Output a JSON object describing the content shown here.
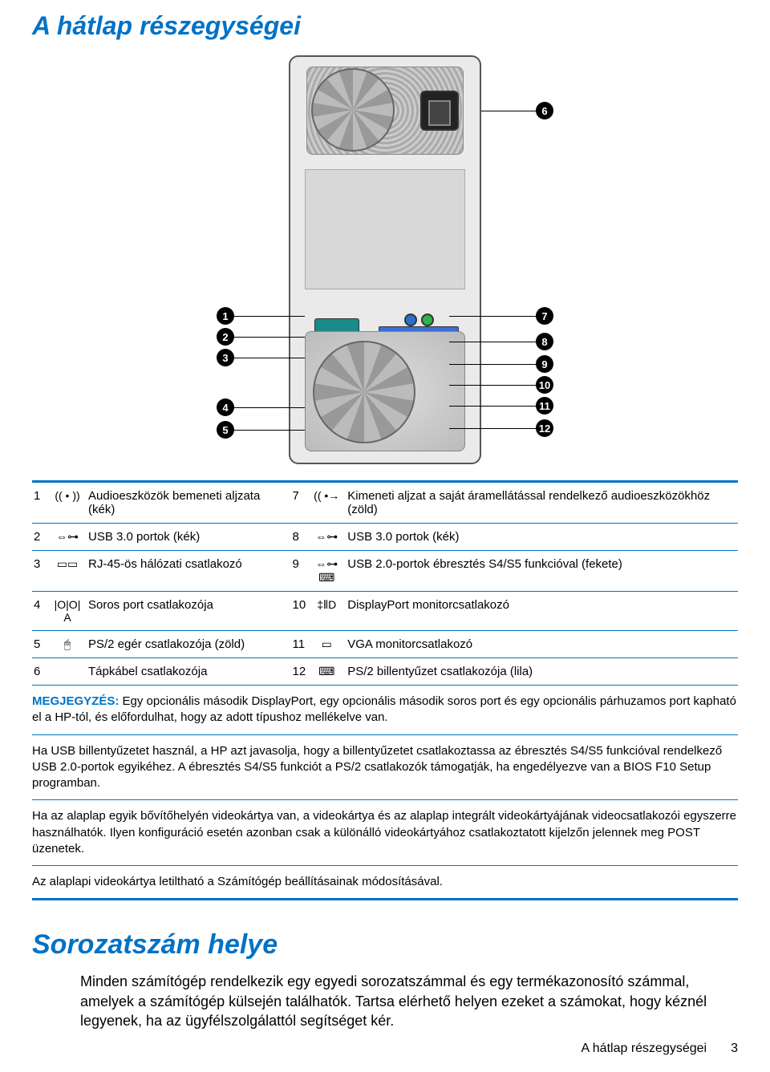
{
  "colors": {
    "accent": "#0072c6"
  },
  "heading1": "A hátlap részegységei",
  "heading2": "Sorozatszám helye",
  "table": {
    "rows": [
      {
        "n1": "1",
        "icon1": "audio-in-icon",
        "t1": "Audioeszközök bemeneti aljzata (kék)",
        "n2": "7",
        "icon2": "audio-out-icon",
        "t2": "Kimeneti aljzat a saját áramellátással rendelkező audioeszközökhöz (zöld)"
      },
      {
        "n1": "2",
        "icon1": "usb-icon",
        "t1": "USB 3.0 portok (kék)",
        "n2": "8",
        "icon2": "usb-icon",
        "t2": "USB 3.0 portok (kék)"
      },
      {
        "n1": "3",
        "icon1": "network-icon",
        "t1": "RJ-45-ös hálózati csatlakozó",
        "n2": "9",
        "icon2": "usb-kb-icon",
        "t2": "USB 2.0-portok ébresztés S4/S5 funkcióval (fekete)"
      },
      {
        "n1": "4",
        "icon1": "serial-icon",
        "t1": "Soros port csatlakozója",
        "n2": "10",
        "icon2": "displayport-icon",
        "t2": "DisplayPort monitorcsatlakozó"
      },
      {
        "n1": "5",
        "icon1": "mouse-icon",
        "t1": "PS/2 egér csatlakozója (zöld)",
        "n2": "11",
        "icon2": "vga-icon",
        "t2": "VGA monitorcsatlakozó"
      },
      {
        "n1": "6",
        "icon1": "",
        "t1": "Tápkábel csatlakozója",
        "n2": "12",
        "icon2": "keyboard-icon",
        "t2": "PS/2 billentyűzet csatlakozója (lila)"
      }
    ]
  },
  "notes": {
    "label": "MEGJEGYZÉS:",
    "p1": "Egy opcionális második DisplayPort, egy opcionális második soros port és egy opcionális párhuzamos port kapható el a HP-tól, és előfordulhat, hogy az adott típushoz mellékelve van.",
    "p2": "Ha USB billentyűzetet használ, a HP azt javasolja, hogy a billentyűzetet csatlakoztassa az ébresztés S4/S5 funkcióval rendelkező USB 2.0-portok egyikéhez. A ébresztés S4/S5 funkciót a PS/2 csatlakozók támogatják, ha engedélyezve van a BIOS F10 Setup programban.",
    "p3": "Ha az alaplap egyik bővítőhelyén videokártya van, a videokártya és az alaplap integrált videokártyájának videocsatlakozói egyszerre használhatók. Ilyen konfiguráció esetén azonban csak a különálló videokártyához csatlakoztatott kijelzőn jelennek meg POST üzenetek.",
    "p4": "Az alaplapi videokártya letiltható a Számítógép beállításainak módosításával."
  },
  "serial_para": "Minden számítógép rendelkezik egy egyedi sorozatszámmal és egy termékazonosító számmal, amelyek a számítógép külsején találhatók. Tartsa elérhető helyen ezeket a számokat, hogy kéznél legyenek, ha az ügyfélszolgálattól segítséget kér.",
  "footer": {
    "section": "A hátlap részegységei",
    "page": "3"
  },
  "callouts_left": [
    "1",
    "2",
    "3",
    "4",
    "5"
  ],
  "callouts_right": [
    "6",
    "7",
    "8",
    "9",
    "10",
    "11",
    "12"
  ],
  "icons": {
    "audio-in-icon": "(( • ))",
    "audio-out-icon": "(( •→",
    "usb-icon": "⇔⊶",
    "usb-kb-icon": "⇔⊶ ⌨",
    "network-icon": "▭▭",
    "serial-icon": "|O|O| A",
    "mouse-icon": "🖱",
    "displayport-icon": "‡⦀D",
    "vga-icon": "▭",
    "keyboard-icon": "⌨",
    "": ""
  }
}
